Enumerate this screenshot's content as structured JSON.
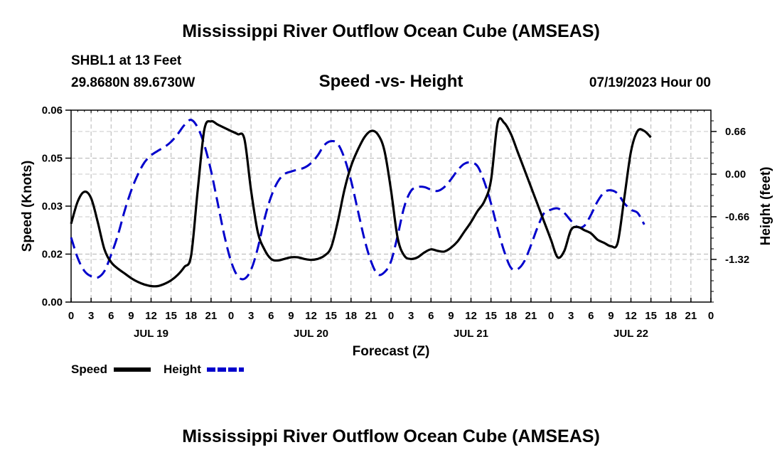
{
  "header": {
    "title": "Mississippi River Outflow Ocean Cube (AMSEAS)",
    "station": "SHBL1 at 13 Feet",
    "coords": "29.8680N  89.6730W",
    "date": "07/19/2023 Hour 00"
  },
  "footer": {
    "title": "Mississippi River Outflow Ocean Cube (AMSEAS)"
  },
  "chart_data": {
    "type": "line",
    "title": "Speed -vs- Height",
    "xlabel": "Forecast (Z)",
    "ylabel_left": "Speed (Knots)",
    "ylabel_right": "Height (feet)",
    "xlim": [
      0,
      96
    ],
    "ylim_left": [
      0,
      0.06
    ],
    "ylim_right": [
      -1.98,
      0.99
    ],
    "y_ticks_left": [
      "0.00",
      "0.02",
      "0.03",
      "0.05",
      "0.06"
    ],
    "y_tick_values_left": [
      0,
      0.015,
      0.03,
      0.045,
      0.06
    ],
    "y_ticks_right": [
      "0.66",
      "0.00",
      "-0.66",
      "-1.32"
    ],
    "y_tick_values_right": [
      0.66,
      0,
      -0.66,
      -1.32
    ],
    "x_tick_labels": [
      "0",
      "3",
      "6",
      "9",
      "12",
      "15",
      "18",
      "21",
      "0",
      "3",
      "6",
      "9",
      "12",
      "15",
      "18",
      "21",
      "0",
      "3",
      "6",
      "9",
      "12",
      "15",
      "18",
      "21",
      "0",
      "3",
      "6",
      "9",
      "12",
      "15",
      "18",
      "21",
      "0"
    ],
    "day_labels": [
      {
        "label": "JUL 19",
        "hour": 12
      },
      {
        "label": "JUL 20",
        "hour": 36
      },
      {
        "label": "JUL 21",
        "hour": 60
      },
      {
        "label": "JUL 22",
        "hour": 84
      }
    ],
    "grid": true,
    "legend": [
      {
        "name": "Speed",
        "color": "#000000",
        "dash": "solid"
      },
      {
        "name": "Height",
        "color": "#0000cc",
        "dash": "dashed"
      }
    ],
    "series": [
      {
        "name": "Speed",
        "axis": "left",
        "color": "#000000",
        "points": [
          [
            0,
            0.0245
          ],
          [
            1,
            0.0315
          ],
          [
            2,
            0.0345
          ],
          [
            3,
            0.0325
          ],
          [
            4,
            0.025
          ],
          [
            5,
            0.0165
          ],
          [
            6,
            0.0125
          ],
          [
            7,
            0.0105
          ],
          [
            8,
            0.009
          ],
          [
            9,
            0.0075
          ],
          [
            10,
            0.0063
          ],
          [
            11,
            0.0055
          ],
          [
            12,
            0.005
          ],
          [
            13,
            0.005
          ],
          [
            14,
            0.0057
          ],
          [
            15,
            0.0068
          ],
          [
            16,
            0.0085
          ],
          [
            17,
            0.011
          ],
          [
            18,
            0.0145
          ],
          [
            19,
            0.035
          ],
          [
            20,
            0.054
          ],
          [
            21,
            0.0565
          ],
          [
            22,
            0.0555
          ],
          [
            23,
            0.0545
          ],
          [
            24,
            0.0535
          ],
          [
            25,
            0.0525
          ],
          [
            26,
            0.051
          ],
          [
            27,
            0.035
          ],
          [
            28,
            0.022
          ],
          [
            29,
            0.0165
          ],
          [
            30,
            0.0135
          ],
          [
            31,
            0.013
          ],
          [
            32,
            0.0135
          ],
          [
            33,
            0.014
          ],
          [
            34,
            0.014
          ],
          [
            35,
            0.0135
          ],
          [
            36,
            0.0132
          ],
          [
            37,
            0.0135
          ],
          [
            38,
            0.0145
          ],
          [
            39,
            0.017
          ],
          [
            40,
            0.025
          ],
          [
            41,
            0.035
          ],
          [
            42,
            0.0425
          ],
          [
            43,
            0.0475
          ],
          [
            44,
            0.0515
          ],
          [
            45,
            0.0535
          ],
          [
            46,
            0.0525
          ],
          [
            47,
            0.0475
          ],
          [
            48,
            0.035
          ],
          [
            49,
            0.02
          ],
          [
            50,
            0.0145
          ],
          [
            51,
            0.0135
          ],
          [
            52,
            0.014
          ],
          [
            53,
            0.0155
          ],
          [
            54,
            0.0165
          ],
          [
            55,
            0.016
          ],
          [
            56,
            0.0158
          ],
          [
            57,
            0.017
          ],
          [
            58,
            0.019
          ],
          [
            59,
            0.022
          ],
          [
            60,
            0.025
          ],
          [
            61,
            0.0285
          ],
          [
            62,
            0.0315
          ],
          [
            63,
            0.038
          ],
          [
            64,
            0.056
          ],
          [
            65,
            0.056
          ],
          [
            66,
            0.0525
          ],
          [
            67,
            0.047
          ],
          [
            68,
            0.0415
          ],
          [
            69,
            0.036
          ],
          [
            70,
            0.0305
          ],
          [
            71,
            0.025
          ],
          [
            72,
            0.0195
          ],
          [
            73,
            0.014
          ],
          [
            74,
            0.016
          ],
          [
            75,
            0.0225
          ],
          [
            76,
            0.0235
          ],
          [
            77,
            0.0225
          ],
          [
            78,
            0.0215
          ],
          [
            79,
            0.0195
          ],
          [
            80,
            0.0185
          ],
          [
            81,
            0.0175
          ],
          [
            82,
            0.0185
          ],
          [
            83,
            0.0325
          ],
          [
            84,
            0.047
          ],
          [
            85,
            0.0535
          ],
          [
            86,
            0.0535
          ],
          [
            87,
            0.0515
          ]
        ]
      },
      {
        "name": "Height",
        "axis": "right",
        "color": "#0000cc",
        "points": [
          [
            0,
            -0.98
          ],
          [
            1,
            -1.3
          ],
          [
            2,
            -1.5
          ],
          [
            3,
            -1.58
          ],
          [
            4,
            -1.6
          ],
          [
            5,
            -1.5
          ],
          [
            6,
            -1.25
          ],
          [
            7,
            -0.95
          ],
          [
            8,
            -0.58
          ],
          [
            9,
            -0.26
          ],
          [
            10,
            -0.01
          ],
          [
            11,
            0.18
          ],
          [
            12,
            0.29
          ],
          [
            13,
            0.36
          ],
          [
            14,
            0.42
          ],
          [
            15,
            0.5
          ],
          [
            16,
            0.62
          ],
          [
            17,
            0.76
          ],
          [
            18,
            0.84
          ],
          [
            19,
            0.72
          ],
          [
            20,
            0.45
          ],
          [
            21,
            0.05
          ],
          [
            22,
            -0.45
          ],
          [
            23,
            -0.95
          ],
          [
            24,
            -1.35
          ],
          [
            25,
            -1.58
          ],
          [
            26,
            -1.62
          ],
          [
            27,
            -1.48
          ],
          [
            28,
            -1.15
          ],
          [
            29,
            -0.7
          ],
          [
            30,
            -0.35
          ],
          [
            31,
            -0.12
          ],
          [
            32,
            0.0
          ],
          [
            33,
            0.04
          ],
          [
            34,
            0.07
          ],
          [
            35,
            0.1
          ],
          [
            36,
            0.17
          ],
          [
            37,
            0.29
          ],
          [
            38,
            0.45
          ],
          [
            39,
            0.51
          ],
          [
            40,
            0.47
          ],
          [
            41,
            0.25
          ],
          [
            42,
            -0.1
          ],
          [
            43,
            -0.55
          ],
          [
            44,
            -1.0
          ],
          [
            45,
            -1.35
          ],
          [
            46,
            -1.55
          ],
          [
            47,
            -1.52
          ],
          [
            48,
            -1.35
          ],
          [
            49,
            -0.95
          ],
          [
            50,
            -0.5
          ],
          [
            51,
            -0.26
          ],
          [
            52,
            -0.2
          ],
          [
            53,
            -0.2
          ],
          [
            54,
            -0.24
          ],
          [
            55,
            -0.26
          ],
          [
            56,
            -0.2
          ],
          [
            57,
            -0.08
          ],
          [
            58,
            0.06
          ],
          [
            59,
            0.16
          ],
          [
            60,
            0.18
          ],
          [
            61,
            0.12
          ],
          [
            62,
            -0.12
          ],
          [
            63,
            -0.45
          ],
          [
            64,
            -0.85
          ],
          [
            65,
            -1.2
          ],
          [
            66,
            -1.45
          ],
          [
            67,
            -1.47
          ],
          [
            68,
            -1.35
          ],
          [
            69,
            -1.1
          ],
          [
            70,
            -0.82
          ],
          [
            71,
            -0.6
          ],
          [
            72,
            -0.55
          ],
          [
            73,
            -0.53
          ],
          [
            74,
            -0.6
          ],
          [
            75,
            -0.72
          ],
          [
            76,
            -0.82
          ],
          [
            77,
            -0.8
          ],
          [
            78,
            -0.63
          ],
          [
            79,
            -0.42
          ],
          [
            80,
            -0.28
          ],
          [
            81,
            -0.25
          ],
          [
            82,
            -0.3
          ],
          [
            83,
            -0.45
          ],
          [
            84,
            -0.55
          ],
          [
            85,
            -0.6
          ],
          [
            86,
            -0.78
          ]
        ]
      }
    ]
  }
}
